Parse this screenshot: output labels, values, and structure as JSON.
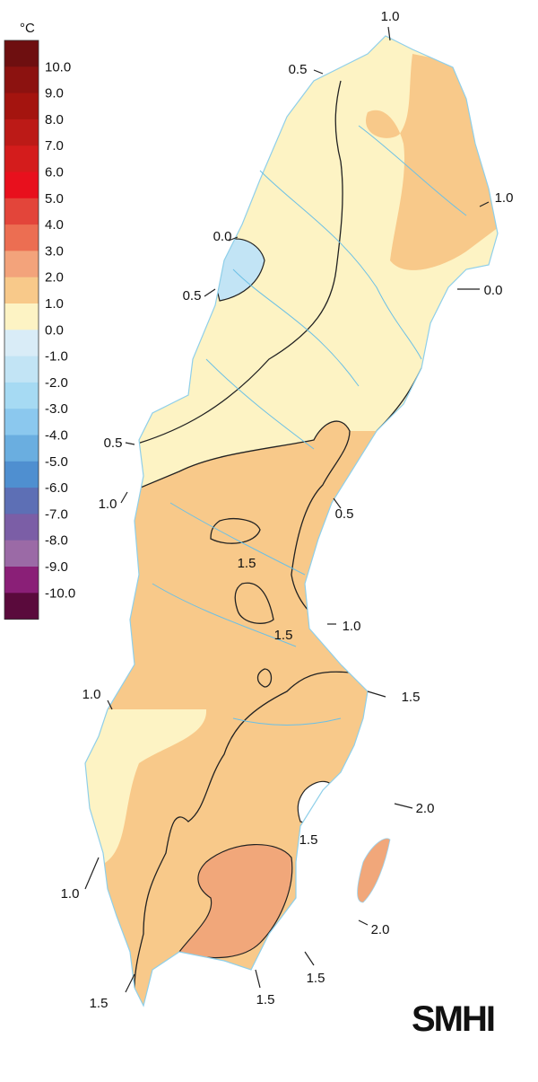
{
  "legend": {
    "unit": "°C",
    "labels": [
      "10.0",
      "9.0",
      "8.0",
      "7.0",
      "6.0",
      "5.0",
      "4.0",
      "3.0",
      "2.0",
      "1.0",
      "0.0",
      "-1.0",
      "-2.0",
      "-3.0",
      "-4.0",
      "-5.0",
      "-6.0",
      "-7.0",
      "-8.0",
      "-9.0",
      "-10.0"
    ],
    "colors": [
      "#6e0f10",
      "#8c1210",
      "#a4140f",
      "#bc1a17",
      "#d41c1c",
      "#e8101d",
      "#e3453a",
      "#ec6e52",
      "#f3a37b",
      "#f8c98a",
      "#fdf3c4",
      "#d9ecf7",
      "#c2e4f5",
      "#a6daf3",
      "#8bc8ee",
      "#6aaee0",
      "#4f8fd0",
      "#5d6fb5",
      "#7b5ea6",
      "#9b6aa6",
      "#8a1f77",
      "#5a0a3c"
    ]
  },
  "contour_labels": [
    "1.0",
    "0.5",
    "1.0",
    "0.0",
    "0.5",
    "0.0",
    "0.5",
    "1.0",
    "0.5",
    "1.5",
    "1.5",
    "1.0",
    "1.0",
    "1.5",
    "1.5",
    "2.0",
    "1.0",
    "2.0",
    "1.5",
    "1.5",
    "1.5"
  ],
  "logo": "SMHI"
}
